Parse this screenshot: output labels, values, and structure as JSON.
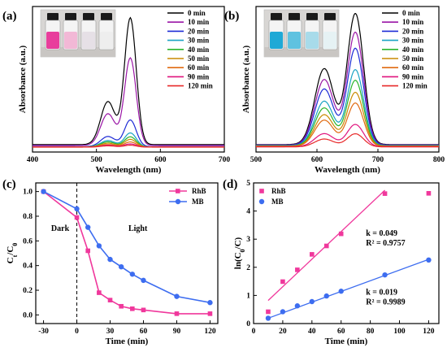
{
  "chart_data": [
    {
      "panel": "(a)",
      "type": "line",
      "xlabel": "Wavelength (nm)",
      "ylabel": "Absorbance (a.u.)",
      "xlim": [
        400,
        700
      ],
      "xticks": [
        400,
        500,
        600,
        700
      ],
      "legend_position": "top-right",
      "series": [
        {
          "name": "0 min",
          "color": "#000000",
          "peak": 1.0,
          "shoulder": 0.34
        },
        {
          "name": "10 min",
          "color": "#9a16a6",
          "peak": 0.69,
          "shoulder": 0.25
        },
        {
          "name": "20 min",
          "color": "#1d2bd6",
          "peak": 0.21,
          "shoulder": 0.08
        },
        {
          "name": "30 min",
          "color": "#1aa3c4",
          "peak": 0.11,
          "shoulder": 0.05
        },
        {
          "name": "40 min",
          "color": "#2bb52b",
          "peak": 0.08,
          "shoulder": 0.04
        },
        {
          "name": "50 min",
          "color": "#c98a00",
          "peak": 0.06,
          "shoulder": 0.03
        },
        {
          "name": "60 min",
          "color": "#e06a10",
          "peak": 0.04,
          "shoulder": 0.02
        },
        {
          "name": "90 min",
          "color": "#e0157e",
          "peak": 0.025,
          "shoulder": 0.015
        },
        {
          "name": "120 min",
          "color": "#e82a2a",
          "peak": 0.015,
          "shoulder": 0.01
        }
      ],
      "inset": {
        "description_colors": [
          "#e83e9c",
          "#f2b8d6",
          "#e6e0e6",
          "#eeeeee"
        ]
      }
    },
    {
      "panel": "(b)",
      "type": "line",
      "xlabel": "Wavelength (nm)",
      "ylabel": "Absorbance (a.u.)",
      "xlim": [
        500,
        800
      ],
      "xticks": [
        500,
        600,
        700,
        800
      ],
      "legend_position": "top-right",
      "series": [
        {
          "name": "0 min",
          "color": "#000000",
          "peak": 1.0,
          "shoulder": 0.58
        },
        {
          "name": "10 min",
          "color": "#9a16a6",
          "peak": 0.86,
          "shoulder": 0.5
        },
        {
          "name": "20 min",
          "color": "#1d2bd6",
          "peak": 0.74,
          "shoulder": 0.43
        },
        {
          "name": "30 min",
          "color": "#1aa3c4",
          "peak": 0.58,
          "shoulder": 0.34
        },
        {
          "name": "40 min",
          "color": "#2bb52b",
          "peak": 0.5,
          "shoulder": 0.29
        },
        {
          "name": "50 min",
          "color": "#c98a00",
          "peak": 0.41,
          "shoulder": 0.24
        },
        {
          "name": "60 min",
          "color": "#e06a10",
          "peak": 0.33,
          "shoulder": 0.2
        },
        {
          "name": "90 min",
          "color": "#e0157e",
          "peak": 0.17,
          "shoulder": 0.1
        },
        {
          "name": "120 min",
          "color": "#e82a2a",
          "peak": 0.1,
          "shoulder": 0.06
        }
      ],
      "inset": {
        "description_colors": [
          "#1fa9d6",
          "#5fc2e0",
          "#a8dbea",
          "#e6f2f4"
        ]
      }
    },
    {
      "panel": "(c)",
      "type": "line",
      "xlabel": "Time (min)",
      "ylabel": "Ct/C0",
      "xlim": [
        -37,
        127
      ],
      "ylim": [
        -0.07,
        1.07
      ],
      "xticks": [
        -30,
        0,
        30,
        60,
        90,
        120
      ],
      "yticks": [
        0.0,
        0.2,
        0.4,
        0.6,
        0.8,
        1.0
      ],
      "annotations": [
        "Dark",
        "Light"
      ],
      "legend_position": "top-right",
      "series": [
        {
          "name": "RhB",
          "color": "#f0389c",
          "marker": "square",
          "x": [
            -30,
            0,
            10,
            20,
            30,
            40,
            50,
            60,
            90,
            120
          ],
          "y": [
            1.0,
            0.79,
            0.52,
            0.18,
            0.12,
            0.07,
            0.05,
            0.04,
            0.01,
            0.01
          ]
        },
        {
          "name": "MB",
          "color": "#3d6df0",
          "marker": "circle",
          "x": [
            -30,
            0,
            10,
            20,
            30,
            40,
            50,
            60,
            90,
            120
          ],
          "y": [
            1.0,
            0.86,
            0.71,
            0.56,
            0.45,
            0.39,
            0.33,
            0.28,
            0.15,
            0.1
          ]
        }
      ]
    },
    {
      "panel": "(d)",
      "type": "scatter",
      "xlabel": "Time (min)",
      "ylabel": "ln(C0/C)",
      "xlim": [
        0,
        127
      ],
      "ylim": [
        0,
        5
      ],
      "xticks": [
        0,
        20,
        40,
        60,
        80,
        100,
        120
      ],
      "yticks": [
        0,
        1,
        2,
        3,
        4,
        5
      ],
      "legend_position": "top-left",
      "series": [
        {
          "name": "RhB",
          "color": "#f0389c",
          "marker": "square",
          "x": [
            10,
            20,
            30,
            40,
            50,
            60,
            90,
            120
          ],
          "y": [
            0.42,
            1.49,
            1.91,
            2.46,
            2.76,
            3.19,
            4.62,
            4.63
          ],
          "fit": {
            "k": "k = 0.049",
            "r2": "R² = 0.9757",
            "line_x": [
              10,
              90
            ],
            "line_y": [
              0.82,
              4.74
            ]
          }
        },
        {
          "name": "MB",
          "color": "#3d6df0",
          "marker": "circle",
          "x": [
            10,
            20,
            30,
            40,
            50,
            60,
            90,
            120
          ],
          "y": [
            0.19,
            0.42,
            0.63,
            0.78,
            0.98,
            1.15,
            1.73,
            2.26
          ],
          "fit": {
            "k": "k = 0.019",
            "r2": "R² = 0.9989",
            "line_x": [
              10,
              120
            ],
            "line_y": [
              0.19,
              2.28
            ]
          }
        }
      ]
    }
  ]
}
